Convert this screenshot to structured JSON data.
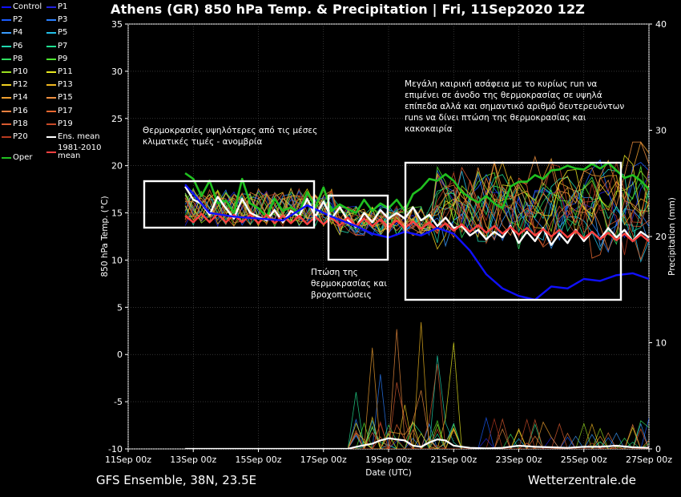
{
  "title": "Athens  (GR)  850 hPa Temp. & Precipitation | Fri, 11Sep2020 12Z",
  "footer": {
    "left": "GFS Ensemble, 38N, 23.5E",
    "right": "Wetterzentrale.de"
  },
  "legend": [
    {
      "label": "Control",
      "color": "#1010ff"
    },
    {
      "label": "P1",
      "color": "#2222dd"
    },
    {
      "label": "P2",
      "color": "#1a5cff"
    },
    {
      "label": "P3",
      "color": "#2a7fff"
    },
    {
      "label": "P4",
      "color": "#3a9cff"
    },
    {
      "label": "P5",
      "color": "#22c0e8"
    },
    {
      "label": "P6",
      "color": "#20d8b0"
    },
    {
      "label": "P7",
      "color": "#20e090"
    },
    {
      "label": "P8",
      "color": "#30e060"
    },
    {
      "label": "P9",
      "color": "#50e830"
    },
    {
      "label": "P10",
      "color": "#9ae020"
    },
    {
      "label": "P11",
      "color": "#e8e820"
    },
    {
      "label": "P12",
      "color": "#f0d020"
    },
    {
      "label": "P13",
      "color": "#f0b820"
    },
    {
      "label": "P14",
      "color": "#f0a030"
    },
    {
      "label": "P15",
      "color": "#f09040"
    },
    {
      "label": "P16",
      "color": "#f08040"
    },
    {
      "label": "P17",
      "color": "#e86830"
    },
    {
      "label": "P18",
      "color": "#d85a30"
    },
    {
      "label": "P19",
      "color": "#c84a28"
    },
    {
      "label": "P20",
      "color": "#b83a20"
    },
    {
      "label": "Ens. mean",
      "color": "#ffffff"
    },
    {
      "label": "Oper",
      "color": "#20c020"
    },
    {
      "label": "1981-2010\nmean",
      "color": "#ff4040"
    }
  ],
  "annotations": [
    {
      "text": "Θερμοκρασίες υψηλότερες από τις μέσες\nκλιματικές τιμές - ανομβρία"
    },
    {
      "text": "Πτώση της\nθερμοκρασίας και\nβροχοπτώσεις"
    },
    {
      "text": "Μεγάλη καιρική ασάφεια με το κυρίως run να\nεπιμένει σε άνοδο της θερμοκρασίας σε υψηλά\nεπίπεδα αλλά και σημαντικό αριθμό δευτερευόντων\nruns να δίνει πτώση της θερμοκρασίας και\nκακοκαιρία"
    }
  ],
  "chart_data": {
    "type": "line",
    "title": "Athens  (GR)  850 hPa Temp. & Precipitation | Fri, 11Sep2020 12Z",
    "xlabel": "Date (UTC)",
    "ylabel": "850 hPa Temp. (°C)",
    "y2label": "Precipitation (mm)",
    "ylim": [
      -10,
      35
    ],
    "y2lim": [
      0,
      40
    ],
    "yticks": [
      "35",
      "30",
      "25",
      "20",
      "15",
      "10",
      "5",
      "0",
      "-5",
      "-10"
    ],
    "y2ticks": [
      "40",
      "30",
      "20",
      "10",
      "0"
    ],
    "xlim": [
      0,
      16
    ],
    "xticks": [
      {
        "x": 0,
        "label": "11Sep 00z"
      },
      {
        "x": 2,
        "label": "13Sep 00z"
      },
      {
        "x": 4,
        "label": "15Sep 00z"
      },
      {
        "x": 6,
        "label": "17Sep 00z"
      },
      {
        "x": 8,
        "label": "19Sep 00z"
      },
      {
        "x": 10,
        "label": "21Sep 00z"
      },
      {
        "x": 12,
        "label": "23Sep 00z"
      },
      {
        "x": 14,
        "label": "25Sep 00z"
      },
      {
        "x": 16,
        "label": "27Sep 00z"
      }
    ],
    "grid": true,
    "series": [
      {
        "name": "Oper",
        "color": "#20c020",
        "width": 2.6,
        "points": [
          [
            1.75,
            19.2
          ],
          [
            2.0,
            18.6
          ],
          [
            2.25,
            16.8
          ],
          [
            2.5,
            18.4
          ],
          [
            2.75,
            16.0
          ],
          [
            3.0,
            16.3
          ],
          [
            3.25,
            15.0
          ],
          [
            3.5,
            18.6
          ],
          [
            3.75,
            16.0
          ],
          [
            4.0,
            15.5
          ],
          [
            4.25,
            14.6
          ],
          [
            4.5,
            16.5
          ],
          [
            4.75,
            15.2
          ],
          [
            5.0,
            15.6
          ],
          [
            5.25,
            15.0
          ],
          [
            5.5,
            17.2
          ],
          [
            5.75,
            15.6
          ],
          [
            6.0,
            17.7
          ],
          [
            6.25,
            15.2
          ],
          [
            6.5,
            15.9
          ],
          [
            6.75,
            15.4
          ],
          [
            7.0,
            15.0
          ],
          [
            7.25,
            16.4
          ],
          [
            7.5,
            15.2
          ],
          [
            7.75,
            16.0
          ],
          [
            8.0,
            15.5
          ],
          [
            8.25,
            16.4
          ],
          [
            8.5,
            15.2
          ],
          [
            8.75,
            17.0
          ],
          [
            9.0,
            17.6
          ],
          [
            9.25,
            18.6
          ],
          [
            9.5,
            18.4
          ],
          [
            9.75,
            19.1
          ],
          [
            10.0,
            18.4
          ],
          [
            10.25,
            17.2
          ],
          [
            10.5,
            16.6
          ],
          [
            10.75,
            16.1
          ],
          [
            11.0,
            16.8
          ],
          [
            11.25,
            16.0
          ],
          [
            11.5,
            15.5
          ],
          [
            11.75,
            17.8
          ],
          [
            12.0,
            18.3
          ],
          [
            12.25,
            18.3
          ],
          [
            12.5,
            19.0
          ],
          [
            12.75,
            18.6
          ],
          [
            13.0,
            19.5
          ],
          [
            13.25,
            19.6
          ],
          [
            13.5,
            20.0
          ],
          [
            13.75,
            19.7
          ],
          [
            14.0,
            19.6
          ],
          [
            14.25,
            20.2
          ],
          [
            14.5,
            19.7
          ],
          [
            14.75,
            20.3
          ],
          [
            15.0,
            19.5
          ],
          [
            15.25,
            18.7
          ],
          [
            15.5,
            19.0
          ],
          [
            15.75,
            18.4
          ],
          [
            16.0,
            17.5
          ],
          [
            16.25,
            16.4
          ]
        ]
      },
      {
        "name": "Ens. mean",
        "color": "#ffffff",
        "width": 2.4,
        "points": [
          [
            1.75,
            17.8
          ],
          [
            2.0,
            16.4
          ],
          [
            2.25,
            16.0
          ],
          [
            2.5,
            14.8
          ],
          [
            2.75,
            16.7
          ],
          [
            3.0,
            15.5
          ],
          [
            3.25,
            14.4
          ],
          [
            3.5,
            16.5
          ],
          [
            3.75,
            15.0
          ],
          [
            4.0,
            14.6
          ],
          [
            4.25,
            14.2
          ],
          [
            4.5,
            15.3
          ],
          [
            4.75,
            14.0
          ],
          [
            5.0,
            15.2
          ],
          [
            5.25,
            14.6
          ],
          [
            5.5,
            16.5
          ],
          [
            5.75,
            14.6
          ],
          [
            6.0,
            16.2
          ],
          [
            6.25,
            14.4
          ],
          [
            6.5,
            15.6
          ],
          [
            6.75,
            14.2
          ],
          [
            7.0,
            13.5
          ],
          [
            7.25,
            15.0
          ],
          [
            7.5,
            14.0
          ],
          [
            7.75,
            15.3
          ],
          [
            8.0,
            14.4
          ],
          [
            8.25,
            15.0
          ],
          [
            8.5,
            14.4
          ],
          [
            8.75,
            15.6
          ],
          [
            9.0,
            14.2
          ],
          [
            9.25,
            14.8
          ],
          [
            9.5,
            13.6
          ],
          [
            9.75,
            14.5
          ],
          [
            10.0,
            13.4
          ],
          [
            10.25,
            13.6
          ],
          [
            10.5,
            12.6
          ],
          [
            10.75,
            13.2
          ],
          [
            11.0,
            12.2
          ],
          [
            11.25,
            13.0
          ],
          [
            11.5,
            12.4
          ],
          [
            11.75,
            13.6
          ],
          [
            12.0,
            11.8
          ],
          [
            12.25,
            13.0
          ],
          [
            12.5,
            12.0
          ],
          [
            12.75,
            13.4
          ],
          [
            13.0,
            11.6
          ],
          [
            13.25,
            12.8
          ],
          [
            13.5,
            11.8
          ],
          [
            13.75,
            13.2
          ],
          [
            14.0,
            12.0
          ],
          [
            14.25,
            13.0
          ],
          [
            14.5,
            12.2
          ],
          [
            14.75,
            13.4
          ],
          [
            15.0,
            12.4
          ],
          [
            15.25,
            13.2
          ],
          [
            15.5,
            12.0
          ],
          [
            15.75,
            13.0
          ],
          [
            16.0,
            12.4
          ],
          [
            16.25,
            12.8
          ]
        ]
      },
      {
        "name": "1981-2010\nmean",
        "color": "#ff4040",
        "width": 2.4,
        "points": [
          [
            1.75,
            14.7
          ],
          [
            2.0,
            14.0
          ],
          [
            2.25,
            14.9
          ],
          [
            2.5,
            14.0
          ],
          [
            2.75,
            14.9
          ],
          [
            3.0,
            14.0
          ],
          [
            3.25,
            14.8
          ],
          [
            3.5,
            14.0
          ],
          [
            3.75,
            14.8
          ],
          [
            4.0,
            13.9
          ],
          [
            4.25,
            14.8
          ],
          [
            4.5,
            13.9
          ],
          [
            4.75,
            14.7
          ],
          [
            5.0,
            13.9
          ],
          [
            5.25,
            14.7
          ],
          [
            5.5,
            13.8
          ],
          [
            5.75,
            14.6
          ],
          [
            6.0,
            13.8
          ],
          [
            6.25,
            14.5
          ],
          [
            6.5,
            13.7
          ],
          [
            6.75,
            14.5
          ],
          [
            7.0,
            13.6
          ],
          [
            7.25,
            14.4
          ],
          [
            7.5,
            13.6
          ],
          [
            7.75,
            14.3
          ],
          [
            8.0,
            13.5
          ],
          [
            8.25,
            14.2
          ],
          [
            8.5,
            13.4
          ],
          [
            8.75,
            14.1
          ],
          [
            9.0,
            13.3
          ],
          [
            9.25,
            14.0
          ],
          [
            9.5,
            13.2
          ],
          [
            9.75,
            13.9
          ],
          [
            10.0,
            13.1
          ],
          [
            10.25,
            13.8
          ],
          [
            10.5,
            13.0
          ],
          [
            10.75,
            13.7
          ],
          [
            11.0,
            12.9
          ],
          [
            11.25,
            13.6
          ],
          [
            11.5,
            12.8
          ],
          [
            11.75,
            13.5
          ],
          [
            12.0,
            12.7
          ],
          [
            12.25,
            13.4
          ],
          [
            12.5,
            12.6
          ],
          [
            12.75,
            13.3
          ],
          [
            13.0,
            12.5
          ],
          [
            13.25,
            13.2
          ],
          [
            13.5,
            12.4
          ],
          [
            13.75,
            13.1
          ],
          [
            14.0,
            12.3
          ],
          [
            14.25,
            13.0
          ],
          [
            14.5,
            12.2
          ],
          [
            14.75,
            12.9
          ],
          [
            15.0,
            12.1
          ],
          [
            15.25,
            12.8
          ],
          [
            15.5,
            12.0
          ],
          [
            15.75,
            12.7
          ],
          [
            16.0,
            12.0
          ],
          [
            16.25,
            12.6
          ]
        ]
      },
      {
        "name": "Control",
        "color": "#1010ff",
        "width": 2.4,
        "points": [
          [
            1.75,
            18.0
          ],
          [
            2.5,
            15.0
          ],
          [
            3.25,
            14.6
          ],
          [
            4.0,
            14.4
          ],
          [
            4.75,
            14.2
          ],
          [
            5.5,
            15.8
          ],
          [
            6.25,
            14.6
          ],
          [
            7.0,
            13.6
          ],
          [
            7.5,
            12.8
          ],
          [
            8.0,
            12.4
          ],
          [
            8.5,
            13.0
          ],
          [
            9.0,
            12.6
          ],
          [
            9.5,
            13.4
          ],
          [
            10.0,
            12.8
          ],
          [
            10.5,
            11.0
          ],
          [
            11.0,
            8.5
          ],
          [
            11.5,
            7.0
          ],
          [
            12.0,
            6.2
          ],
          [
            12.5,
            5.8
          ],
          [
            13.0,
            7.2
          ],
          [
            13.5,
            7.0
          ],
          [
            14.0,
            8.0
          ],
          [
            14.5,
            7.8
          ],
          [
            15.0,
            8.4
          ],
          [
            15.5,
            8.6
          ],
          [
            16.0,
            8.0
          ],
          [
            16.25,
            9.2
          ]
        ]
      }
    ],
    "precip": {
      "name": "Ens. mean",
      "color": "#ffffff",
      "points": [
        [
          1.75,
          0
        ],
        [
          6.75,
          0
        ],
        [
          7.0,
          0.2
        ],
        [
          7.5,
          0.5
        ],
        [
          7.75,
          0.8
        ],
        [
          8.0,
          1.0
        ],
        [
          8.25,
          0.9
        ],
        [
          8.5,
          0.8
        ],
        [
          8.75,
          0.3
        ],
        [
          9.0,
          0.2
        ],
        [
          9.25,
          0.6
        ],
        [
          9.5,
          0.9
        ],
        [
          9.75,
          0.8
        ],
        [
          10.0,
          0.3
        ],
        [
          10.5,
          0.1
        ],
        [
          11.0,
          0.05
        ],
        [
          11.5,
          0.1
        ],
        [
          12.0,
          0.3
        ],
        [
          12.5,
          0.2
        ],
        [
          13.0,
          0.15
        ],
        [
          13.5,
          0.1
        ],
        [
          14.0,
          0.2
        ],
        [
          14.5,
          0.2
        ],
        [
          15.0,
          0.3
        ],
        [
          15.5,
          0.15
        ],
        [
          16.0,
          0.1
        ],
        [
          16.25,
          0.05
        ]
      ]
    }
  }
}
